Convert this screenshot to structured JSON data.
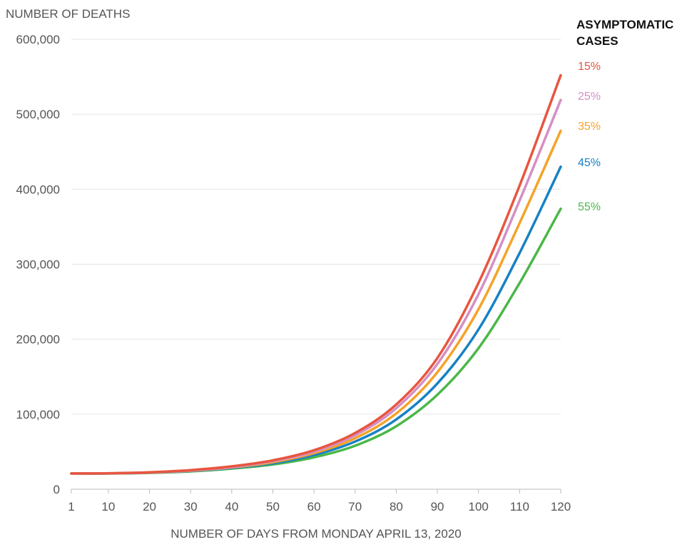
{
  "chart_data": {
    "type": "line",
    "ylabel": "NUMBER OF DEATHS",
    "xlabel": "NUMBER OF DAYS FROM MONDAY APRIL 13, 2020",
    "legend_title": "ASYMPTOMATIC CASES",
    "legend_placement": "right",
    "grid": "horizontal",
    "xlim": [
      1,
      120
    ],
    "ylim": [
      0,
      600000
    ],
    "x_ticks": [
      "1",
      "10",
      "20",
      "30",
      "40",
      "50",
      "60",
      "70",
      "80",
      "90",
      "100",
      "110",
      "120"
    ],
    "y_ticks": [
      "0",
      "100,000",
      "200,000",
      "300,000",
      "400,000",
      "500,000",
      "600,000"
    ],
    "x": [
      1,
      10,
      20,
      30,
      40,
      50,
      60,
      70,
      80,
      90,
      100,
      110,
      120
    ],
    "series": [
      {
        "name": "15%",
        "color": "#e8553f",
        "values": [
          21000,
          21300,
          22500,
          25500,
          30500,
          38500,
          52000,
          75000,
          113000,
          175000,
          275000,
          405000,
          552000
        ]
      },
      {
        "name": "25%",
        "color": "#d48fc4",
        "values": [
          21000,
          21200,
          22300,
          25000,
          29500,
          37500,
          50000,
          72000,
          108000,
          167000,
          260000,
          385000,
          519000
        ]
      },
      {
        "name": "35%",
        "color": "#f4a329",
        "values": [
          21000,
          21100,
          22100,
          24600,
          29000,
          36000,
          48000,
          68000,
          101000,
          156000,
          240000,
          355000,
          478000
        ]
      },
      {
        "name": "45%",
        "color": "#1781c5",
        "values": [
          21000,
          21000,
          22000,
          24200,
          28300,
          34500,
          45500,
          63500,
          93000,
          141000,
          213000,
          315000,
          430000
        ]
      },
      {
        "name": "55%",
        "color": "#4bb748",
        "values": [
          21000,
          21000,
          21800,
          23800,
          27500,
          33000,
          42500,
          58000,
          84000,
          126000,
          188000,
          275000,
          374000
        ]
      }
    ]
  }
}
